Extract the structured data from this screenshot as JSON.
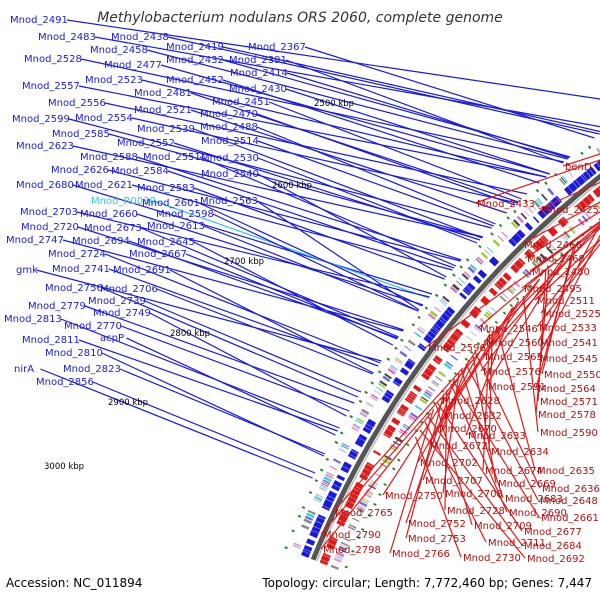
{
  "title": "Methylobacterium nodulans ORS 2060, complete genome",
  "accession": "Accession: NC_011894",
  "topology": "Topology: circular; Length: 7,772,460 bp; Genes: 7,447",
  "colors": {
    "plus_strand": "#1a1adc",
    "minus_strand": "#e01a1a",
    "rna_label": "#33c6dd",
    "backbone": "#555555",
    "rna_marks": "#2a8a2a"
  },
  "kbp_marks": [
    "2500 kbp",
    "2600 kbp",
    "2700 kbp",
    "2800 kbp",
    "2900 kbp",
    "3000 kbp"
  ],
  "left_labels": [
    "Mnod_2491",
    "Mnod_2483",
    "Mnod_2438",
    "Mnod_2528",
    "Mnod_2458",
    "Mnod_2419",
    "Mnod_2367",
    "Mnod_2432",
    "Mnod_2391",
    "Mnod_2477",
    "Mnod_2414",
    "Mnod_2557",
    "Mnod_2523",
    "Mnod_2452",
    "Mnod_2481",
    "Mnod_2430",
    "Mnod_2556",
    "Mnod_2451",
    "Mnod_2521",
    "Mnod_2599",
    "Mnod_2554",
    "Mnod_2470",
    "Mnod_2488",
    "Mnod_2585",
    "Mnod_2539",
    "Mnod_2514",
    "Mnod_2623",
    "Mnod_2552",
    "Mnod_2588",
    "Mnod_2551",
    "Mnod_2530",
    "Mnod_2626",
    "Mnod_2584",
    "Mnod_2540",
    "Mnod_2680",
    "Mnod_2621",
    "Mnod_2583",
    "Mnod_R0030",
    "Mnod_2601",
    "Mnod_2563",
    "Mnod_2703",
    "Mnod_2660",
    "Mnod_2598",
    "Mnod_2720",
    "Mnod_2673",
    "Mnod_2613",
    "Mnod_2747",
    "Mnod_2694",
    "Mnod_2645",
    "Mnod_2724",
    "Mnod_2667",
    "gmk",
    "Mnod_2741",
    "Mnod_2691",
    "Mnod_2756",
    "Mnod_2706",
    "Mnod_2739",
    "Mnod_2779",
    "Mnod_2749",
    "Mnod_2813",
    "Mnod_2770",
    "Mnod_2811",
    "acpP",
    "Mnod_2810",
    "nirA",
    "Mnod_2823",
    "Mnod_2856"
  ],
  "right_labels": [
    "benD",
    "Mnod_2433",
    "Mnod_2425",
    "Mnod_2466",
    "Mnod_2468",
    "Mnod_2480",
    "Mnod_2495",
    "Mnod_2511",
    "Mnod_2525",
    "Mnod_2546",
    "Mnod_2533",
    "Mnod_2560",
    "Mnod_2541",
    "Mnod_2596",
    "Mnod_2565",
    "Mnod_2545",
    "Mnod_2576",
    "Mnod_2550",
    "Mnod_2591",
    "Mnod_2564",
    "Mnod_2628",
    "Mnod_2571",
    "Mnod_2632",
    "Mnod_2578",
    "Mnod_2670",
    "Mnod_2633",
    "Mnod_2590",
    "Mnod_2672",
    "Mnod_2634",
    "Mnod_2702",
    "Mnod_2674",
    "Mnod_2635",
    "Mnod_2707",
    "Mnod_2669",
    "Mnod_2636",
    "Mnod_2750",
    "Mnod_2708",
    "Mnod_2683",
    "Mnod_2648",
    "Mnod_2765",
    "Mnod_2728",
    "Mnod_2690",
    "Mnod_2661",
    "Mnod_2752",
    "Mnod_2709",
    "Mnod_2677",
    "Mnod_2790",
    "Mnod_2753",
    "Mnod_2711",
    "Mnod_2684",
    "Mnod_2798",
    "Mnod_2766",
    "Mnod_2730",
    "Mnod_2692"
  ]
}
